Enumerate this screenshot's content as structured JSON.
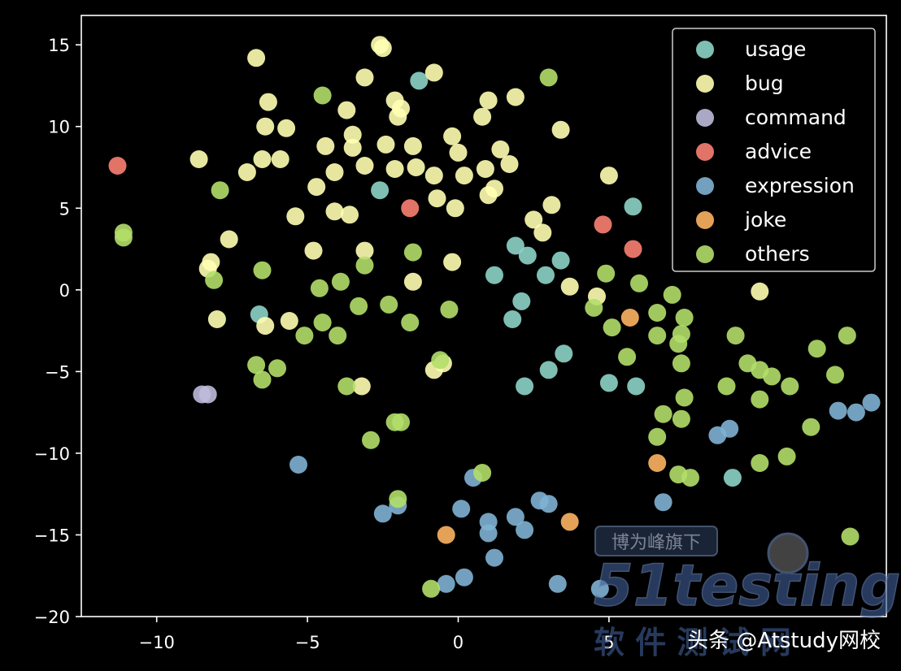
{
  "colors": {
    "background": "#000000",
    "axes": "#ffffff",
    "usage": "#8dd3c7",
    "bug": "#ffffb3",
    "command": "#bebada",
    "advice": "#fb8072",
    "expression": "#80b1d3",
    "joke": "#fdb462",
    "others": "#b3de69"
  },
  "watermark": {
    "badge": "博为峰旗下",
    "logo": "51testing",
    "subtitle": "软 件 测 试 网",
    "credit": "头条 @Atstudy网校"
  },
  "chart_data": {
    "type": "scatter",
    "xlim": [
      -12.5,
      14.2
    ],
    "ylim": [
      -20,
      16.8
    ],
    "x_ticks": [
      -10,
      -5,
      0,
      5
    ],
    "y_ticks": [
      15,
      10,
      5,
      0,
      -5,
      -10,
      -15,
      -20
    ],
    "x_tick_labels": [
      "−10",
      "−5",
      "0",
      "5"
    ],
    "y_tick_labels": [
      "15",
      "10",
      "5",
      "0",
      "−5",
      "−10",
      "−15",
      "−20"
    ],
    "legend_position": "top-right",
    "series": [
      {
        "name": "usage",
        "color": "#8dd3c7",
        "points": [
          [
            -1.3,
            12.8
          ],
          [
            -2.6,
            6.1
          ],
          [
            -6.6,
            -1.5
          ],
          [
            1.2,
            0.9
          ],
          [
            1.9,
            2.7
          ],
          [
            2.3,
            2.1
          ],
          [
            3.4,
            1.8
          ],
          [
            2.9,
            0.9
          ],
          [
            1.8,
            -1.8
          ],
          [
            2.1,
            -0.7
          ],
          [
            3.5,
            -3.9
          ],
          [
            3.0,
            -4.9
          ],
          [
            2.2,
            -5.9
          ],
          [
            5.9,
            -5.9
          ],
          [
            5.0,
            -5.7
          ],
          [
            5.8,
            5.1
          ],
          [
            9.1,
            -11.5
          ]
        ]
      },
      {
        "name": "bug",
        "color": "#ffffb3",
        "points": [
          [
            -6.7,
            14.2
          ],
          [
            -2.6,
            15.0
          ],
          [
            -2.5,
            14.8
          ],
          [
            -0.8,
            13.3
          ],
          [
            -3.1,
            13.0
          ],
          [
            -6.3,
            11.5
          ],
          [
            -3.7,
            11.0
          ],
          [
            -2.1,
            11.6
          ],
          [
            -1.9,
            11.1
          ],
          [
            -2.0,
            10.6
          ],
          [
            1.0,
            11.6
          ],
          [
            1.9,
            11.8
          ],
          [
            0.8,
            10.6
          ],
          [
            -6.4,
            10.0
          ],
          [
            -5.7,
            9.9
          ],
          [
            -3.5,
            9.5
          ],
          [
            -0.2,
            9.4
          ],
          [
            3.4,
            9.8
          ],
          [
            -8.6,
            8.0
          ],
          [
            -6.5,
            8.0
          ],
          [
            -5.9,
            8.0
          ],
          [
            -4.4,
            8.8
          ],
          [
            -3.5,
            8.7
          ],
          [
            -2.4,
            8.9
          ],
          [
            -1.5,
            8.8
          ],
          [
            0.0,
            8.4
          ],
          [
            1.4,
            8.6
          ],
          [
            -3.1,
            7.6
          ],
          [
            -4.1,
            7.2
          ],
          [
            -2.1,
            7.4
          ],
          [
            -1.4,
            7.5
          ],
          [
            -0.8,
            7.0
          ],
          [
            0.2,
            7.0
          ],
          [
            0.9,
            7.4
          ],
          [
            1.7,
            7.7
          ],
          [
            -7.0,
            7.2
          ],
          [
            -4.7,
            6.3
          ],
          [
            1.2,
            6.2
          ],
          [
            1.0,
            5.8
          ],
          [
            -0.7,
            5.6
          ],
          [
            -0.1,
            5.0
          ],
          [
            -4.1,
            4.8
          ],
          [
            -3.6,
            4.6
          ],
          [
            -5.4,
            4.5
          ],
          [
            2.5,
            4.3
          ],
          [
            3.1,
            5.2
          ],
          [
            2.8,
            3.5
          ],
          [
            5.0,
            7.0
          ],
          [
            -7.6,
            3.1
          ],
          [
            -8.2,
            1.7
          ],
          [
            -8.3,
            1.3
          ],
          [
            -4.8,
            2.4
          ],
          [
            -3.1,
            2.4
          ],
          [
            -0.2,
            1.7
          ],
          [
            -1.5,
            0.5
          ],
          [
            3.7,
            0.2
          ],
          [
            4.6,
            -0.4
          ],
          [
            -8.0,
            -1.8
          ],
          [
            -6.4,
            -2.2
          ],
          [
            -5.6,
            -1.9
          ],
          [
            -3.2,
            -5.9
          ],
          [
            -0.5,
            -4.5
          ],
          [
            -0.8,
            -4.9
          ],
          [
            10.0,
            -0.1
          ]
        ]
      },
      {
        "name": "command",
        "color": "#bebada",
        "points": [
          [
            -8.5,
            -6.4
          ],
          [
            -8.3,
            -6.4
          ]
        ]
      },
      {
        "name": "advice",
        "color": "#fb8072",
        "points": [
          [
            -11.3,
            7.6
          ],
          [
            -1.6,
            5.0
          ],
          [
            4.8,
            4.0
          ],
          [
            5.8,
            2.5
          ]
        ]
      },
      {
        "name": "expression",
        "color": "#80b1d3",
        "points": [
          [
            -5.3,
            -10.7
          ],
          [
            -2.5,
            -13.7
          ],
          [
            -2.0,
            -13.2
          ],
          [
            0.1,
            -13.4
          ],
          [
            0.5,
            -11.5
          ],
          [
            1.0,
            -14.2
          ],
          [
            1.0,
            -14.9
          ],
          [
            1.2,
            -16.4
          ],
          [
            1.9,
            -13.9
          ],
          [
            2.2,
            -14.7
          ],
          [
            2.7,
            -12.9
          ],
          [
            3.0,
            -13.1
          ],
          [
            3.3,
            -18.0
          ],
          [
            0.2,
            -17.6
          ],
          [
            -0.4,
            -18.0
          ],
          [
            4.7,
            -18.3
          ],
          [
            6.8,
            -13.0
          ],
          [
            8.6,
            -8.9
          ],
          [
            9.0,
            -8.5
          ],
          [
            12.6,
            -7.4
          ],
          [
            13.2,
            -7.5
          ],
          [
            13.7,
            -6.9
          ]
        ]
      },
      {
        "name": "joke",
        "color": "#fdb462",
        "points": [
          [
            5.7,
            -1.7
          ],
          [
            6.6,
            -10.6
          ],
          [
            3.7,
            -14.2
          ],
          [
            -0.4,
            -15.0
          ]
        ]
      },
      {
        "name": "others",
        "color": "#b3de69",
        "points": [
          [
            -11.1,
            3.5
          ],
          [
            -11.1,
            3.2
          ],
          [
            -7.9,
            6.1
          ],
          [
            -8.1,
            0.6
          ],
          [
            -6.5,
            1.2
          ],
          [
            -4.5,
            11.9
          ],
          [
            3.0,
            13.0
          ],
          [
            -4.6,
            0.1
          ],
          [
            -3.9,
            0.5
          ],
          [
            -3.1,
            1.5
          ],
          [
            -1.5,
            2.3
          ],
          [
            -2.3,
            -0.9
          ],
          [
            -3.3,
            -1.0
          ],
          [
            -4.5,
            -2.0
          ],
          [
            -5.1,
            -2.8
          ],
          [
            -4.0,
            -2.8
          ],
          [
            -1.6,
            -2.0
          ],
          [
            -0.3,
            -1.2
          ],
          [
            -6.7,
            -4.6
          ],
          [
            -6.5,
            -5.5
          ],
          [
            -6.0,
            -4.8
          ],
          [
            -3.7,
            -5.9
          ],
          [
            -2.9,
            -9.2
          ],
          [
            -2.1,
            -8.1
          ],
          [
            -1.9,
            -8.1
          ],
          [
            -0.6,
            -4.3
          ],
          [
            -2.0,
            -12.8
          ],
          [
            0.8,
            -11.2
          ],
          [
            -0.9,
            -18.3
          ],
          [
            4.5,
            -1.1
          ],
          [
            4.9,
            1.0
          ],
          [
            5.1,
            -2.3
          ],
          [
            5.6,
            -4.1
          ],
          [
            6.0,
            0.4
          ],
          [
            6.6,
            -1.4
          ],
          [
            6.6,
            -2.8
          ],
          [
            7.1,
            -0.3
          ],
          [
            7.4,
            -2.7
          ],
          [
            7.3,
            -3.3
          ],
          [
            7.4,
            -4.5
          ],
          [
            7.5,
            -1.7
          ],
          [
            7.5,
            -6.6
          ],
          [
            6.6,
            -9.0
          ],
          [
            6.8,
            -7.6
          ],
          [
            7.4,
            -7.9
          ],
          [
            7.3,
            -11.3
          ],
          [
            7.7,
            -11.5
          ],
          [
            8.9,
            -5.9
          ],
          [
            9.2,
            -2.8
          ],
          [
            9.6,
            -4.5
          ],
          [
            10.0,
            -4.9
          ],
          [
            10.0,
            -6.7
          ],
          [
            10.4,
            -5.3
          ],
          [
            11.0,
            -5.9
          ],
          [
            10.0,
            -10.6
          ],
          [
            10.9,
            -10.2
          ],
          [
            11.7,
            -8.4
          ],
          [
            11.9,
            -3.6
          ],
          [
            12.5,
            -5.2
          ],
          [
            12.9,
            -2.8
          ],
          [
            13.0,
            -15.1
          ]
        ]
      }
    ]
  }
}
